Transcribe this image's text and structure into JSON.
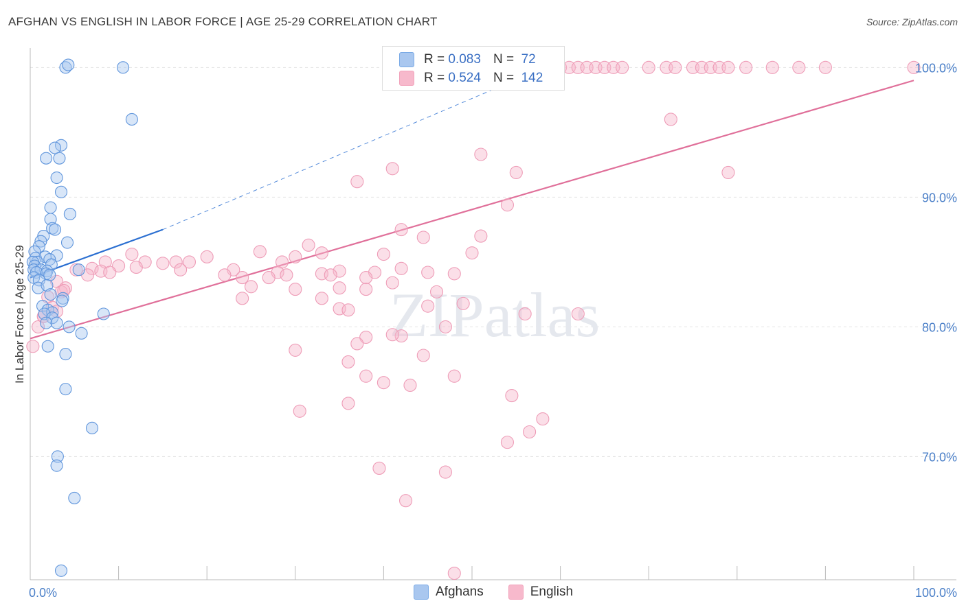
{
  "title": "AFGHAN VS ENGLISH IN LABOR FORCE | AGE 25-29 CORRELATION CHART",
  "source": "Source: ZipAtlas.com",
  "watermark": "ZIPatlas",
  "colors": {
    "blue": "#7aaae6",
    "blue_line": "#2b6fd1",
    "pink": "#f2a2bb",
    "pink_line": "#e0709a",
    "tick_blue": "#4a7fc8"
  },
  "legend": {
    "rows": [
      {
        "r_label": "R =",
        "r_value": "0.083",
        "n_label": "N =",
        "n_value": "72",
        "color": "#a9c7ef"
      },
      {
        "r_label": "R =",
        "r_value": "0.524",
        "n_label": "N =",
        "n_value": "142",
        "color": "#f7b9cc"
      }
    ]
  },
  "bottom_legend": {
    "items": [
      {
        "label": "Afghans",
        "color": "#a9c7ef"
      },
      {
        "label": "English",
        "color": "#f7b9cc"
      }
    ]
  },
  "chart_data": {
    "type": "scatter",
    "xlabel": "",
    "ylabel": "In Labor Force | Age 25-29",
    "x_tick_labels": [
      "0.0%",
      "100.0%"
    ],
    "y_tick_labels": [
      "70.0%",
      "80.0%",
      "90.0%",
      "100.0%"
    ],
    "xlim": [
      0,
      100
    ],
    "ylim": [
      60.5,
      101.5
    ],
    "grid": true,
    "series": [
      {
        "name": "Afghans",
        "trend": {
          "x0": 0,
          "y0": 83.8,
          "x1": 15,
          "y1": 87.5,
          "dashed_to": {
            "x": 60,
            "y": 100.5
          }
        },
        "points": [
          [
            4,
            100
          ],
          [
            4.3,
            100.2
          ],
          [
            10.5,
            100
          ],
          [
            11.5,
            96
          ],
          [
            3.5,
            94
          ],
          [
            2.8,
            93.8
          ],
          [
            1.8,
            93
          ],
          [
            3.3,
            93
          ],
          [
            3,
            91.5
          ],
          [
            3.5,
            90.4
          ],
          [
            2.3,
            89.2
          ],
          [
            4.5,
            88.7
          ],
          [
            2.3,
            88.3
          ],
          [
            2.5,
            87.6
          ],
          [
            2.8,
            87.5
          ],
          [
            1.5,
            87
          ],
          [
            1.2,
            86.6
          ],
          [
            4.2,
            86.5
          ],
          [
            1,
            86.2
          ],
          [
            0.5,
            85.8
          ],
          [
            1.7,
            85.4
          ],
          [
            3,
            85.5
          ],
          [
            0.6,
            85.3
          ],
          [
            2.2,
            85.2
          ],
          [
            0.8,
            85
          ],
          [
            0.3,
            85
          ],
          [
            2.4,
            84.8
          ],
          [
            0.5,
            84.7
          ],
          [
            0.4,
            84.4
          ],
          [
            1.2,
            84.4
          ],
          [
            1.9,
            84.3
          ],
          [
            0.7,
            84.2
          ],
          [
            1.8,
            84.1
          ],
          [
            2.2,
            84
          ],
          [
            0.4,
            83.8
          ],
          [
            1,
            83.6
          ],
          [
            5.5,
            84.4
          ],
          [
            0.9,
            83
          ],
          [
            1.9,
            83.2
          ],
          [
            2.3,
            82.5
          ],
          [
            3.7,
            82.2
          ],
          [
            3.6,
            82
          ],
          [
            1.4,
            81.6
          ],
          [
            2,
            81.3
          ],
          [
            2.5,
            81.1
          ],
          [
            1.6,
            81
          ],
          [
            8.3,
            81
          ],
          [
            2.5,
            80.7
          ],
          [
            1.8,
            80.3
          ],
          [
            3,
            80.3
          ],
          [
            4.4,
            80
          ],
          [
            5.8,
            79.5
          ],
          [
            2,
            78.5
          ],
          [
            4,
            77.9
          ],
          [
            4,
            75.2
          ],
          [
            7,
            72.2
          ],
          [
            3.1,
            70
          ],
          [
            3,
            69.3
          ],
          [
            5,
            66.8
          ],
          [
            3.5,
            61.2
          ]
        ]
      },
      {
        "name": "English",
        "trend": {
          "x0": 0,
          "y0": 79.1,
          "x1": 100,
          "y1": 99
        },
        "points": [
          [
            48,
            100
          ],
          [
            49,
            100
          ],
          [
            50,
            100
          ],
          [
            51,
            100
          ],
          [
            52,
            100
          ],
          [
            53,
            100
          ],
          [
            54,
            100
          ],
          [
            55,
            100
          ],
          [
            56,
            100
          ],
          [
            57,
            100
          ],
          [
            58,
            100
          ],
          [
            59,
            100
          ],
          [
            60,
            100
          ],
          [
            61,
            100
          ],
          [
            62,
            100
          ],
          [
            63,
            100
          ],
          [
            64,
            100
          ],
          [
            65,
            100
          ],
          [
            66,
            100
          ],
          [
            67,
            100
          ],
          [
            70,
            100
          ],
          [
            72,
            100
          ],
          [
            73,
            100
          ],
          [
            75,
            100
          ],
          [
            76,
            100
          ],
          [
            77,
            100
          ],
          [
            78,
            100
          ],
          [
            79,
            100
          ],
          [
            81,
            100
          ],
          [
            84,
            100
          ],
          [
            87,
            100
          ],
          [
            90,
            100
          ],
          [
            100,
            100
          ],
          [
            72.5,
            96
          ],
          [
            51,
            93.3
          ],
          [
            41,
            92.2
          ],
          [
            55,
            91.9
          ],
          [
            79,
            91.9
          ],
          [
            37,
            91.2
          ],
          [
            54,
            89.4
          ],
          [
            42,
            87.5
          ],
          [
            44.5,
            86.9
          ],
          [
            51,
            87
          ],
          [
            31.5,
            86.3
          ],
          [
            26,
            85.8
          ],
          [
            33,
            85.7
          ],
          [
            11.5,
            85.6
          ],
          [
            40,
            85.6
          ],
          [
            50,
            85.7
          ],
          [
            8.5,
            85
          ],
          [
            13,
            85
          ],
          [
            15,
            84.9
          ],
          [
            20,
            85.4
          ],
          [
            30,
            85.4
          ],
          [
            28.5,
            85
          ],
          [
            16.5,
            85
          ],
          [
            18,
            85
          ],
          [
            10,
            84.7
          ],
          [
            12,
            84.6
          ],
          [
            7,
            84.5
          ],
          [
            5.2,
            84.4
          ],
          [
            8,
            84.3
          ],
          [
            9,
            84.2
          ],
          [
            17,
            84.4
          ],
          [
            23,
            84.4
          ],
          [
            28,
            84.2
          ],
          [
            33,
            84.1
          ],
          [
            35,
            84.3
          ],
          [
            39,
            84.2
          ],
          [
            42,
            84.5
          ],
          [
            45,
            84.2
          ],
          [
            6.5,
            84
          ],
          [
            22,
            84
          ],
          [
            24,
            83.8
          ],
          [
            27,
            83.8
          ],
          [
            29,
            84
          ],
          [
            34,
            84
          ],
          [
            38,
            83.8
          ],
          [
            48,
            84.1
          ],
          [
            3,
            83.5
          ],
          [
            25,
            83.1
          ],
          [
            30,
            82.9
          ],
          [
            35,
            83
          ],
          [
            38,
            82.9
          ],
          [
            41,
            83.4
          ],
          [
            46,
            82.7
          ],
          [
            4,
            83
          ],
          [
            3.5,
            82.7
          ],
          [
            2,
            82.3
          ],
          [
            24,
            82.2
          ],
          [
            33,
            82.2
          ],
          [
            45,
            81.6
          ],
          [
            49,
            81.8
          ],
          [
            35,
            81.4
          ],
          [
            36,
            81.3
          ],
          [
            2.5,
            81.5
          ],
          [
            3,
            81.2
          ],
          [
            1.5,
            80.8
          ],
          [
            0.9,
            80
          ],
          [
            56,
            81
          ],
          [
            62,
            81
          ],
          [
            47,
            80
          ],
          [
            38,
            79.2
          ],
          [
            42,
            79.3
          ],
          [
            41,
            79.4
          ],
          [
            30,
            78.2
          ],
          [
            37,
            78.7
          ],
          [
            44.5,
            77.8
          ],
          [
            36,
            77.3
          ],
          [
            38,
            76.2
          ],
          [
            48,
            76.2
          ],
          [
            40,
            75.7
          ],
          [
            43,
            75.5
          ],
          [
            36,
            74.1
          ],
          [
            54.5,
            74.7
          ],
          [
            30.5,
            73.5
          ],
          [
            58,
            72.9
          ],
          [
            56.5,
            71.9
          ],
          [
            54,
            71.1
          ],
          [
            47,
            68.8
          ],
          [
            39.5,
            69.1
          ],
          [
            42.5,
            66.6
          ],
          [
            48,
            61
          ],
          [
            0.3,
            78.5
          ],
          [
            1.5,
            80.8
          ],
          [
            3.8,
            82.8
          ]
        ]
      }
    ]
  }
}
